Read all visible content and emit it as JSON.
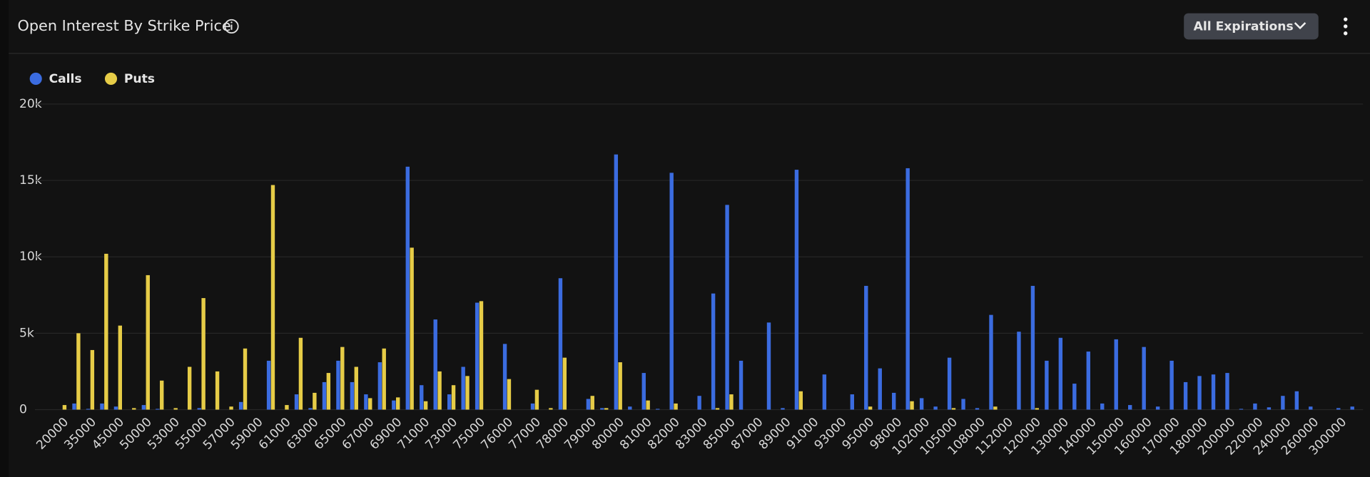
{
  "header": {
    "button": "All Expirations"
  },
  "chart_data": {
    "type": "bar",
    "title": "Open Interest By Strike Price",
    "categories": [
      "20000",
      null,
      "35000",
      null,
      "45000",
      null,
      "50000",
      null,
      "53000",
      null,
      "55000",
      null,
      "57000",
      null,
      "59000",
      null,
      "61000",
      null,
      "63000",
      null,
      "65000",
      null,
      "67000",
      null,
      "69000",
      null,
      "71000",
      null,
      "73000",
      null,
      "75000",
      null,
      "76000",
      null,
      "77000",
      null,
      "78000",
      null,
      "79000",
      null,
      "80000",
      null,
      "81000",
      null,
      "82000",
      null,
      "83000",
      null,
      "85000",
      null,
      "87000",
      null,
      "89000",
      null,
      "91000",
      null,
      "93000",
      null,
      "95000",
      null,
      "98000",
      null,
      "102000",
      null,
      "105000",
      null,
      "108000",
      null,
      "112000",
      null,
      "120000",
      null,
      "130000",
      null,
      "140000",
      null,
      "150000",
      null,
      "160000",
      null,
      "170000",
      null,
      "180000",
      null,
      "200000",
      null,
      "220000",
      null,
      "240000",
      null,
      "260000",
      null,
      "300000",
      null
    ],
    "series": [
      {
        "name": "Calls",
        "color": "#3b6ce0",
        "values": [
          0,
          400,
          50,
          400,
          200,
          0,
          300,
          50,
          0,
          0,
          100,
          0,
          0,
          500,
          0,
          3200,
          0,
          1000,
          100,
          1800,
          3200,
          1800,
          1000,
          3100,
          600,
          15900,
          1600,
          5900,
          1000,
          2800,
          7000,
          0,
          4300,
          0,
          400,
          0,
          8600,
          0,
          700,
          100,
          16700,
          200,
          2400,
          50,
          15500,
          0,
          900,
          7600,
          13400,
          3200,
          0,
          5700,
          100,
          15700,
          0,
          2300,
          0,
          1000,
          8100,
          2700,
          1100,
          15800,
          750,
          200,
          3400,
          700,
          100,
          6200,
          0,
          5100,
          8100,
          3200,
          4700,
          1700,
          3800,
          400,
          4600,
          300,
          4100,
          200,
          3200,
          1800,
          2200,
          2300,
          2400,
          50,
          400,
          150,
          900,
          1200,
          200,
          0,
          100,
          200
        ]
      },
      {
        "name": "Puts",
        "color": "#e6cc47",
        "values": [
          300,
          5000,
          3900,
          10200,
          5500,
          100,
          8800,
          1900,
          100,
          2800,
          7300,
          2500,
          200,
          4000,
          0,
          14700,
          300,
          4700,
          1100,
          2400,
          4100,
          2800,
          750,
          4000,
          800,
          10600,
          550,
          2500,
          1600,
          2200,
          7100,
          0,
          2000,
          0,
          1300,
          100,
          3400,
          0,
          900,
          100,
          3100,
          0,
          600,
          0,
          400,
          0,
          0,
          100,
          1000,
          0,
          0,
          0,
          0,
          1200,
          0,
          0,
          0,
          0,
          200,
          0,
          0,
          550,
          0,
          0,
          100,
          0,
          0,
          200,
          0,
          0,
          100,
          0,
          0,
          0,
          0,
          0,
          0,
          0,
          0,
          0,
          0,
          0,
          0,
          0,
          0,
          0,
          0,
          0,
          0,
          0,
          0,
          0,
          0,
          0
        ]
      }
    ],
    "ylim": [
      0,
      20000
    ],
    "yticks": [
      {
        "value": 0,
        "label": "0"
      },
      {
        "value": 5000,
        "label": "5k"
      },
      {
        "value": 10000,
        "label": "10k"
      },
      {
        "value": 15000,
        "label": "15k"
      },
      {
        "value": 20000,
        "label": "20k"
      }
    ],
    "grid": true
  }
}
